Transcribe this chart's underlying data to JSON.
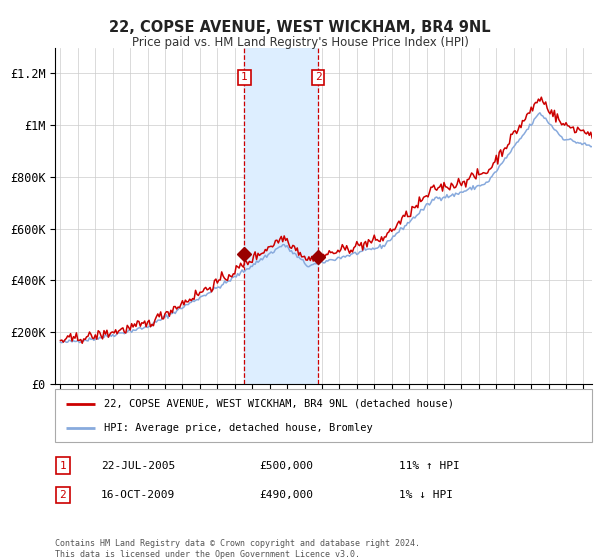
{
  "title": "22, COPSE AVENUE, WEST WICKHAM, BR4 9NL",
  "subtitle": "Price paid vs. HM Land Registry's House Price Index (HPI)",
  "ylabel_ticks": [
    "£0",
    "£200K",
    "£400K",
    "£600K",
    "£800K",
    "£1M",
    "£1.2M"
  ],
  "ytick_values": [
    0,
    200000,
    400000,
    600000,
    800000,
    1000000,
    1200000
  ],
  "ylim": [
    0,
    1300000
  ],
  "xlim_left": 1994.7,
  "xlim_right": 2025.5,
  "legend_line1": "22, COPSE AVENUE, WEST WICKHAM, BR4 9NL (detached house)",
  "legend_line2": "HPI: Average price, detached house, Bromley",
  "sale1_date": "22-JUL-2005",
  "sale1_price": "£500,000",
  "sale1_hpi": "11% ↑ HPI",
  "sale1_year": 2005.55,
  "sale1_val": 500000,
  "sale2_date": "16-OCT-2009",
  "sale2_price": "£490,000",
  "sale2_hpi": "1% ↓ HPI",
  "sale2_year": 2009.79,
  "sale2_val": 490000,
  "shade_start": 2005.55,
  "shade_end": 2009.79,
  "color_red": "#cc0000",
  "color_blue": "#88aadd",
  "color_shade": "#ddeeff",
  "color_vline": "#cc0000",
  "footnote": "Contains HM Land Registry data © Crown copyright and database right 2024.\nThis data is licensed under the Open Government Licence v3.0.",
  "background_color": "#ffffff",
  "grid_color": "#cccccc"
}
